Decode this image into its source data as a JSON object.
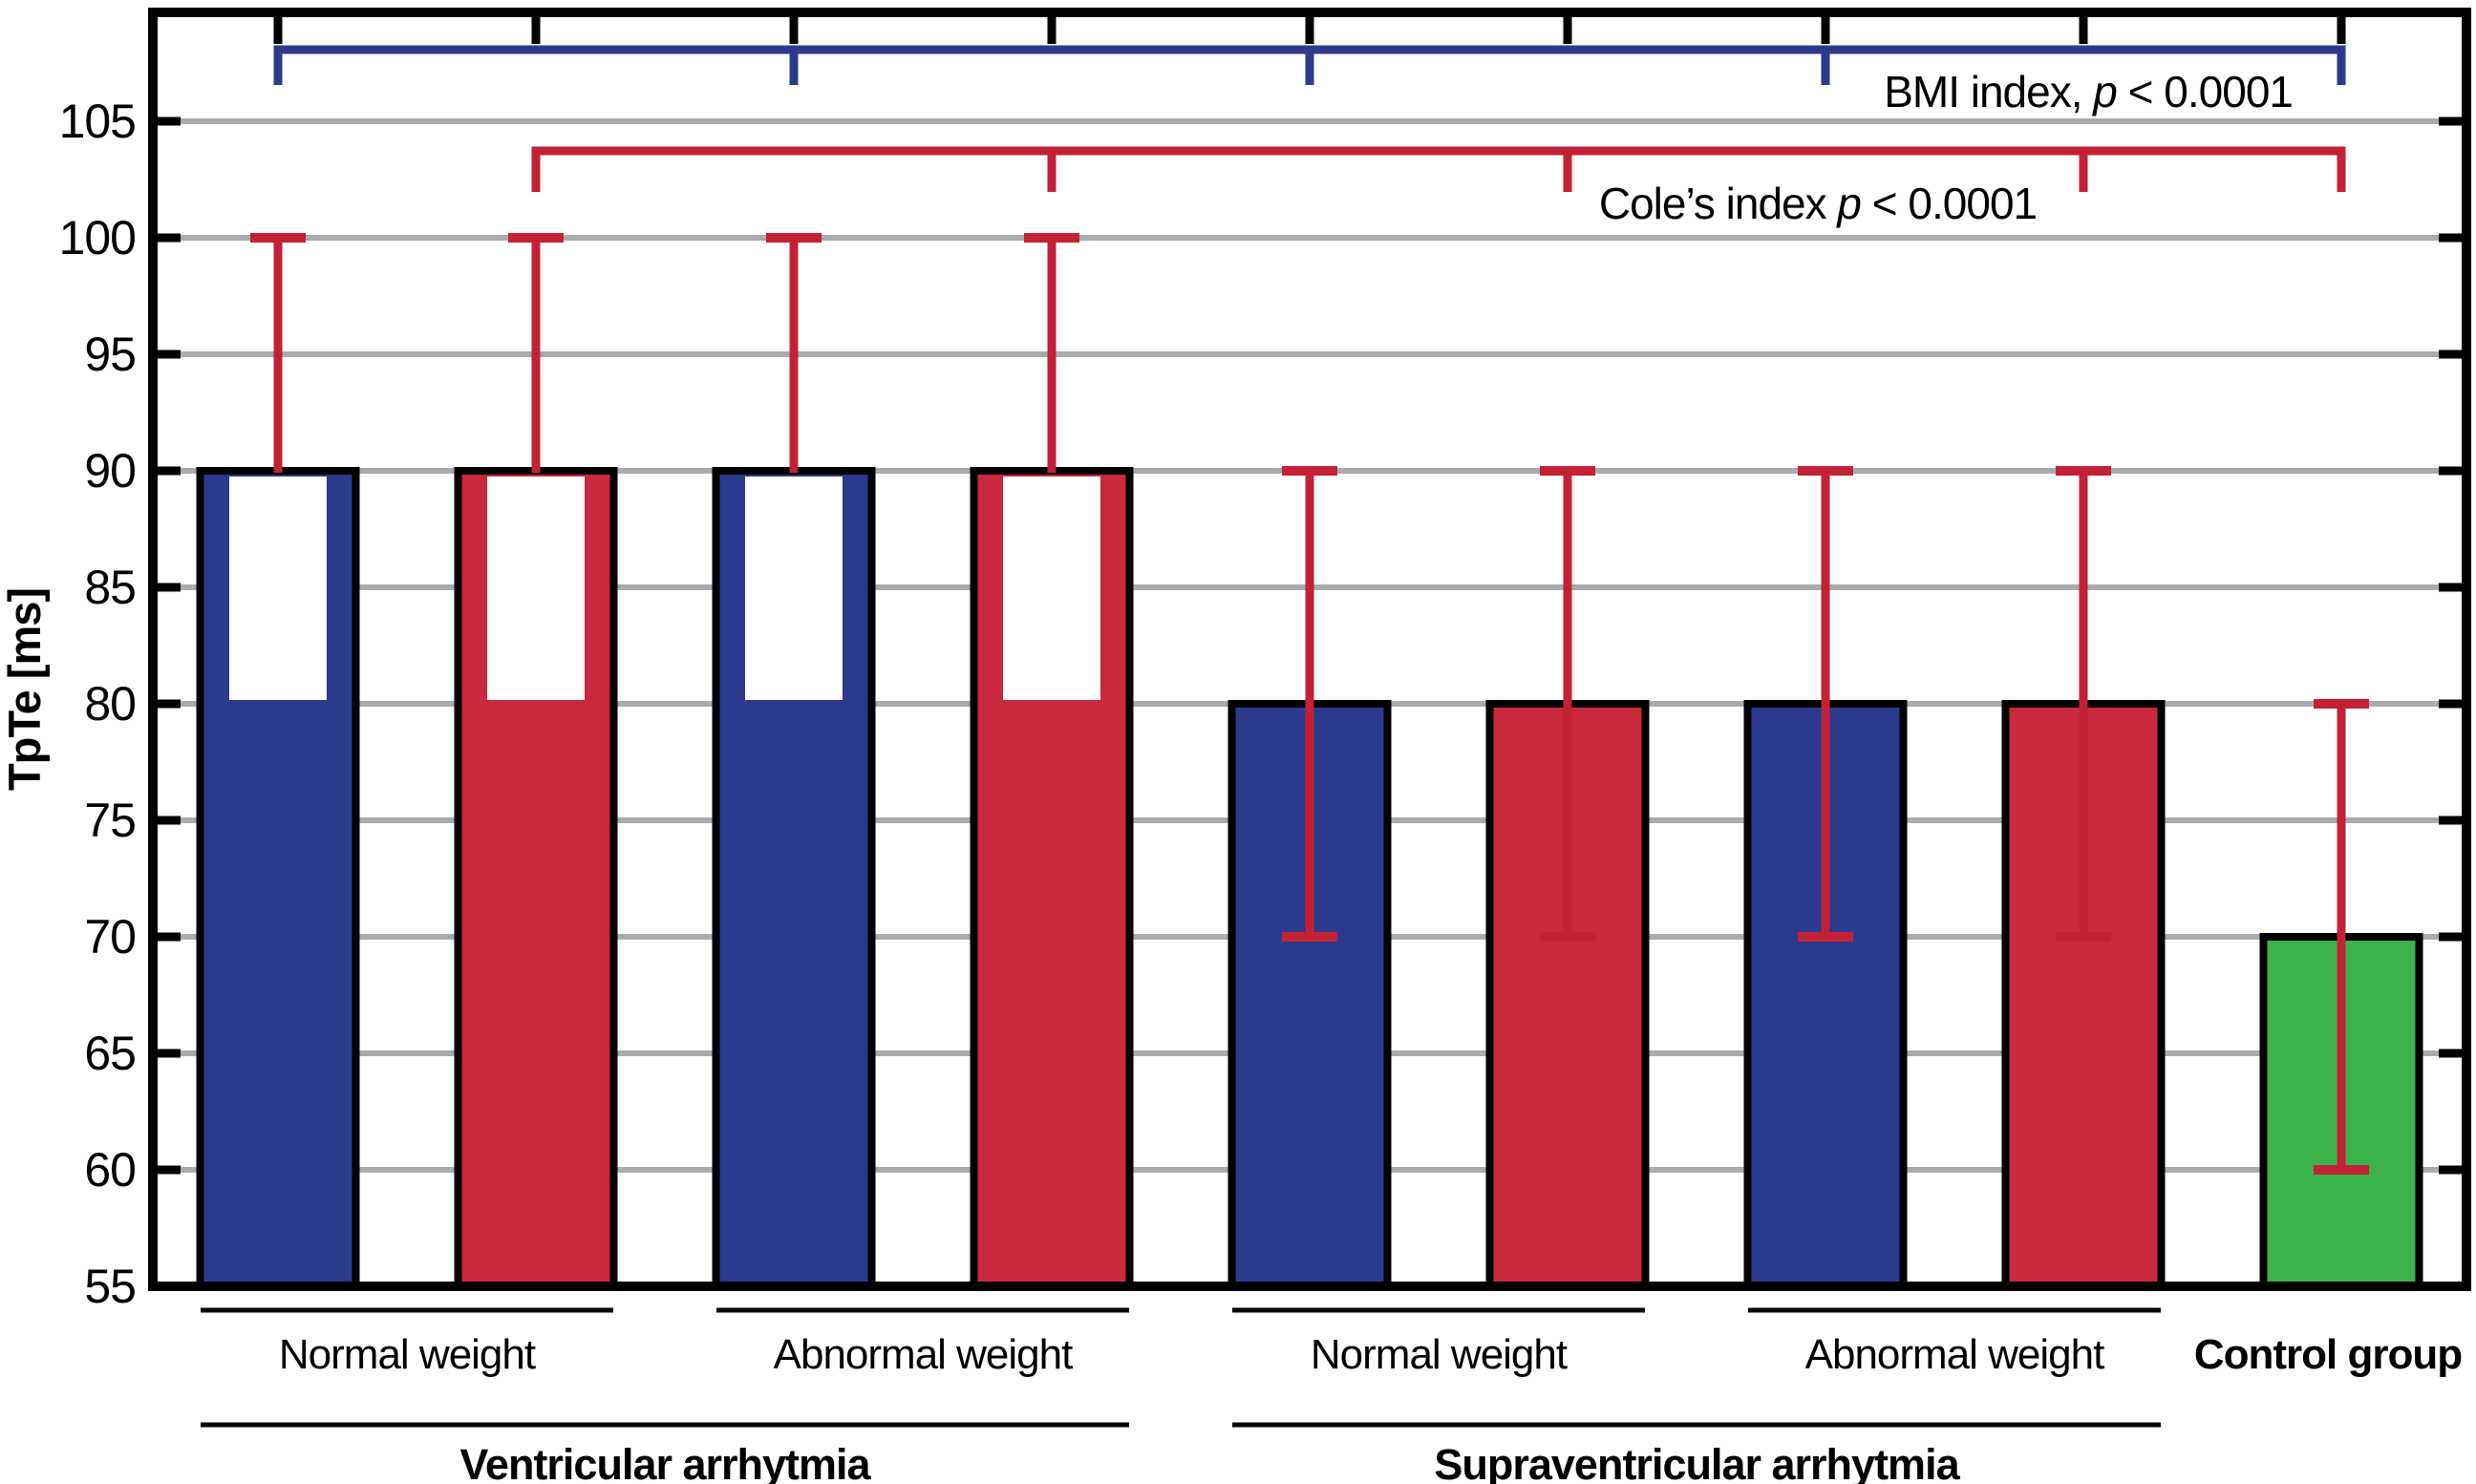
{
  "figure": {
    "background": "#ffffff"
  },
  "colors": {
    "blue": "#2B3A8C",
    "red": "#C9293C",
    "green": "#3CB24A",
    "error_red": "#C32134",
    "bracket_blue": "#2B3A8C",
    "bracket_red": "#C32134",
    "grid": "#A9ABAE",
    "axis": "#000000"
  },
  "chart_data": {
    "type": "bar",
    "ylabel": "TpTe [ms]",
    "ylim": [
      55,
      109.7
    ],
    "yticks": [
      55,
      60,
      65,
      70,
      75,
      80,
      85,
      90,
      95,
      100,
      105
    ],
    "grid": true,
    "bars": [
      {
        "group": "Ventricular arrhytmia",
        "weight": "Normal weight",
        "series": "blue",
        "value": 90,
        "error_low": 80,
        "error_high": 100,
        "caps": "high",
        "inner_box": [
          80,
          90
        ]
      },
      {
        "group": "Ventricular arrhytmia",
        "weight": "Normal weight",
        "series": "red",
        "value": 90,
        "error_low": 80,
        "error_high": 100,
        "caps": "high",
        "inner_box": [
          80,
          90
        ]
      },
      {
        "group": "Ventricular arrhytmia",
        "weight": "Abnormal weight",
        "series": "blue",
        "value": 90,
        "error_low": 80,
        "error_high": 100,
        "caps": "high",
        "inner_box": [
          80,
          90
        ]
      },
      {
        "group": "Ventricular arrhytmia",
        "weight": "Abnormal weight",
        "series": "red",
        "value": 90,
        "error_low": 80,
        "error_high": 100,
        "caps": "high",
        "inner_box": [
          80,
          90
        ]
      },
      {
        "group": "Supraventricular arrhytmia",
        "weight": "Normal weight",
        "series": "blue",
        "value": 80,
        "error_low": 70,
        "error_high": 90,
        "caps": "both",
        "inner_box": null
      },
      {
        "group": "Supraventricular arrhytmia",
        "weight": "Normal weight",
        "series": "red",
        "value": 80,
        "error_low": 70,
        "error_high": 90,
        "caps": "both",
        "inner_box": null
      },
      {
        "group": "Supraventricular arrhytmia",
        "weight": "Abnormal weight",
        "series": "blue",
        "value": 80,
        "error_low": 70,
        "error_high": 90,
        "caps": "both",
        "inner_box": null
      },
      {
        "group": "Supraventricular arrhytmia",
        "weight": "Abnormal weight",
        "series": "red",
        "value": 80,
        "error_low": 70,
        "error_high": 90,
        "caps": "both",
        "inner_box": null
      },
      {
        "group": "Control group",
        "weight": "Control group",
        "series": "green",
        "value": 70,
        "error_low": 60,
        "error_high": 80,
        "caps": "both",
        "inner_box": null
      }
    ],
    "significance": [
      {
        "id": "bmi",
        "color_key": "bracket_blue",
        "bars": [
          0,
          2,
          4,
          6,
          8
        ],
        "label_prefix": "BMI index, ",
        "label_p": "p",
        "label_suffix": " < 0.0001"
      },
      {
        "id": "cole",
        "color_key": "bracket_red",
        "bars": [
          1,
          3,
          5,
          7,
          8
        ],
        "label_prefix": "Cole’s index ",
        "label_p": "p",
        "label_suffix": " < 0.0001"
      }
    ],
    "group_rows": {
      "weight_labels": [
        {
          "text": "Normal weight",
          "bars": [
            0,
            1
          ]
        },
        {
          "text": "Abnormal weight",
          "bars": [
            2,
            3
          ]
        },
        {
          "text": "Normal weight",
          "bars": [
            4,
            5
          ]
        },
        {
          "text": "Abnormal weight",
          "bars": [
            6,
            7
          ]
        }
      ],
      "control_label": "Control group",
      "arrhythmia_labels": [
        {
          "text": "Ventricular arrhytmia",
          "bars": [
            0,
            3
          ]
        },
        {
          "text": "Supraventricular arrhytmia",
          "bars": [
            4,
            7
          ]
        }
      ]
    }
  }
}
